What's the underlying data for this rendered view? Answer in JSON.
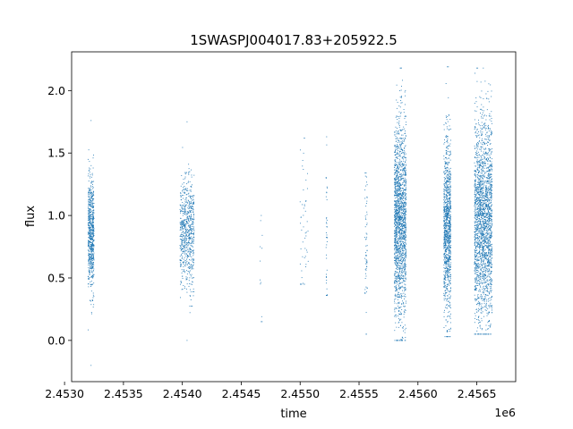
{
  "chart_data": {
    "type": "scatter",
    "title": "1SWASPJ004017.83+205922.5",
    "xlabel": "time",
    "ylabel": "flux",
    "x_offset_label": "1e6",
    "xlim": [
      2.45306,
      2.45683
    ],
    "ylim": [
      -0.33,
      2.31
    ],
    "x_ticks": [
      2.453,
      2.4535,
      2.454,
      2.4545,
      2.455,
      2.4555,
      2.456,
      2.4565
    ],
    "x_tick_labels": [
      "2.4530",
      "2.4535",
      "2.4540",
      "2.4545",
      "2.4550",
      "2.4555",
      "2.4560",
      "2.4565"
    ],
    "y_ticks": [
      0.0,
      0.5,
      1.0,
      1.5,
      2.0
    ],
    "y_tick_labels": [
      "0.0",
      "0.5",
      "1.0",
      "1.5",
      "2.0"
    ],
    "grid": false,
    "marker_color": "#1f77b4",
    "clusters": [
      {
        "x_start": 2.4532,
        "x_end": 2.45325,
        "y_center": 0.85,
        "y_spread": 0.22,
        "y_min": -0.2,
        "y_max": 1.76,
        "points": 700
      },
      {
        "x_start": 2.45398,
        "x_end": 2.4541,
        "y_center": 0.85,
        "y_spread": 0.22,
        "y_min": 0.0,
        "y_max": 1.75,
        "points": 700
      },
      {
        "x_start": 2.45466,
        "x_end": 2.45468,
        "y_center": 0.6,
        "y_spread": 0.3,
        "y_min": 0.15,
        "y_max": 1.0,
        "points": 10
      },
      {
        "x_start": 2.455,
        "x_end": 2.45507,
        "y_center": 0.9,
        "y_spread": 0.35,
        "y_min": 0.45,
        "y_max": 1.62,
        "points": 50
      },
      {
        "x_start": 2.45522,
        "x_end": 2.45523,
        "y_center": 0.9,
        "y_spread": 0.35,
        "y_min": 0.36,
        "y_max": 1.63,
        "points": 40
      },
      {
        "x_start": 2.45555,
        "x_end": 2.45557,
        "y_center": 0.75,
        "y_spread": 0.3,
        "y_min": 0.05,
        "y_max": 1.34,
        "points": 60
      },
      {
        "x_start": 2.4558,
        "x_end": 2.4559,
        "y_center": 0.95,
        "y_spread": 0.4,
        "y_min": 0.0,
        "y_max": 2.18,
        "points": 1800
      },
      {
        "x_start": 2.45622,
        "x_end": 2.45628,
        "y_center": 0.9,
        "y_spread": 0.35,
        "y_min": 0.03,
        "y_max": 2.19,
        "points": 1100
      },
      {
        "x_start": 2.45648,
        "x_end": 2.45663,
        "y_center": 0.95,
        "y_spread": 0.4,
        "y_min": 0.05,
        "y_max": 2.18,
        "points": 2200
      }
    ]
  }
}
